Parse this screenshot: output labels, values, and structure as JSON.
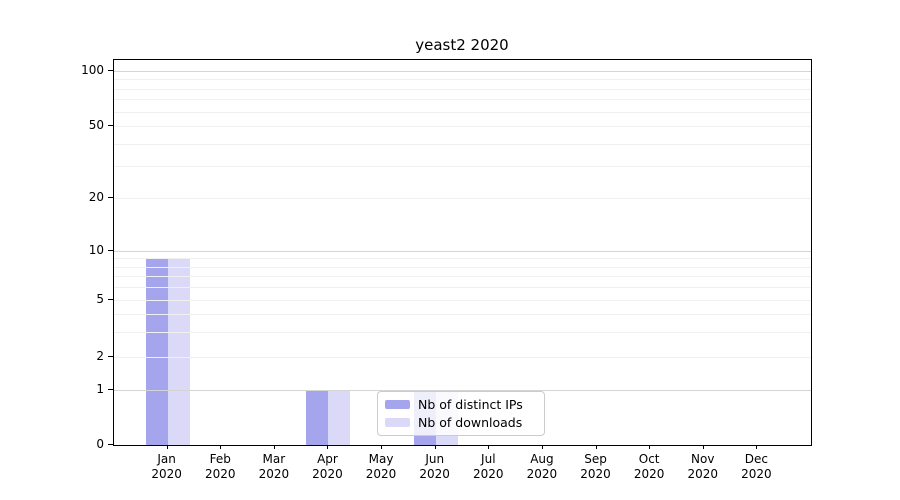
{
  "chart_data": {
    "type": "bar",
    "title": "yeast2 2020",
    "categories": [
      "Jan",
      "Feb",
      "Mar",
      "Apr",
      "May",
      "Jun",
      "Jul",
      "Aug",
      "Sep",
      "Oct",
      "Nov",
      "Dec"
    ],
    "category_year": "2020",
    "series": [
      {
        "name": "Nb of distinct IPs",
        "color": "#a5a5ee",
        "values": [
          9,
          0,
          0,
          1,
          0,
          1,
          0,
          0,
          0,
          0,
          0,
          0
        ]
      },
      {
        "name": "Nb of downloads",
        "color": "#dadaf8",
        "values": [
          9,
          0,
          0,
          1,
          0,
          1,
          0,
          0,
          0,
          0,
          0,
          0
        ]
      }
    ],
    "y_ticks": [
      100,
      50,
      20,
      10,
      5,
      2,
      1,
      0
    ],
    "y_scale": "logarithmic above 1, linear between 0 and 1",
    "ylim": [
      0,
      110
    ],
    "grid": "horizontal major and minor gridlines",
    "legend_position": "lower center inside plot",
    "legend_entries": [
      "Nb of distinct IPs",
      "Nb of downloads"
    ]
  }
}
